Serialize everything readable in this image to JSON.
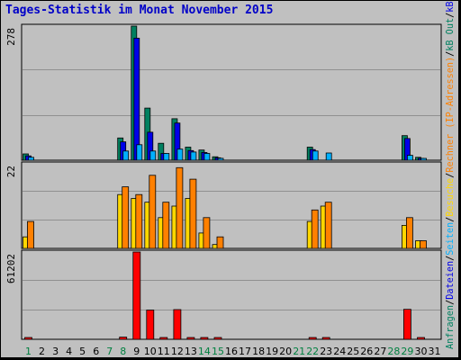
{
  "title": "Tages-Statistik im Monat November 2015",
  "colors": {
    "background": "#c0c0c0",
    "gridline": "#909090",
    "axis": "#000000",
    "title": "#0000c8",
    "day_weekday": "#000000",
    "day_weekend": "#008040"
  },
  "chart_data": [
    {
      "type": "bar",
      "panel": "top",
      "ymax_label": "278",
      "ylim": [
        0,
        278
      ],
      "grid": true,
      "categories": [
        "1",
        "2",
        "3",
        "4",
        "5",
        "6",
        "7",
        "8",
        "9",
        "10",
        "11",
        "12",
        "13",
        "14",
        "15",
        "16",
        "17",
        "18",
        "19",
        "20",
        "21",
        "22",
        "23",
        "24",
        "25",
        "26",
        "27",
        "28",
        "29",
        "30",
        "31"
      ],
      "weekend_days": [
        "1",
        "7",
        "8",
        "14",
        "15",
        "21",
        "22",
        "28",
        "29"
      ],
      "series": [
        {
          "name": "Anfragen",
          "color": "#008060",
          "values": [
            13,
            0,
            0,
            0,
            0,
            0,
            0,
            46,
            278,
            108,
            35,
            86,
            27,
            21,
            7,
            0,
            0,
            0,
            0,
            0,
            0,
            27,
            0,
            0,
            0,
            0,
            0,
            0,
            51,
            6,
            0
          ]
        },
        {
          "name": "Dateien",
          "color": "#0000e8",
          "values": [
            9,
            0,
            0,
            0,
            0,
            0,
            0,
            38,
            253,
            58,
            14,
            77,
            20,
            16,
            5,
            0,
            0,
            0,
            0,
            0,
            0,
            22,
            0,
            0,
            0,
            0,
            0,
            0,
            45,
            4,
            0
          ]
        },
        {
          "name": "Seiten",
          "color": "#00b0ff",
          "values": [
            6,
            0,
            0,
            0,
            0,
            0,
            0,
            19,
            32,
            19,
            14,
            23,
            17,
            14,
            4,
            0,
            0,
            0,
            0,
            0,
            0,
            19,
            15,
            0,
            0,
            0,
            0,
            0,
            10,
            3,
            0
          ]
        }
      ],
      "legend_position": "right"
    },
    {
      "type": "bar",
      "panel": "middle",
      "ymax_label": "22",
      "ylim": [
        0,
        22
      ],
      "grid": true,
      "categories": [
        "1",
        "2",
        "3",
        "4",
        "5",
        "6",
        "7",
        "8",
        "9",
        "10",
        "11",
        "12",
        "13",
        "14",
        "15",
        "16",
        "17",
        "18",
        "19",
        "20",
        "21",
        "22",
        "23",
        "24",
        "25",
        "26",
        "27",
        "28",
        "29",
        "30",
        "31"
      ],
      "series": [
        {
          "name": "Besuche",
          "color": "#ffd700",
          "values": [
            3,
            0,
            0,
            0,
            0,
            0,
            0,
            14,
            13,
            12,
            8,
            11,
            13,
            4,
            1,
            0,
            0,
            0,
            0,
            0,
            0,
            7,
            11,
            0,
            0,
            0,
            0,
            0,
            6,
            2,
            0
          ]
        },
        {
          "name": "Rechner (IP-Adressen)",
          "color": "#ff8000",
          "values": [
            7,
            0,
            0,
            0,
            0,
            0,
            0,
            16,
            14,
            19,
            12,
            21,
            18,
            8,
            3,
            0,
            0,
            0,
            0,
            0,
            0,
            10,
            12,
            0,
            0,
            0,
            0,
            0,
            8,
            2,
            0
          ]
        }
      ],
      "legend_position": "right"
    },
    {
      "type": "bar",
      "panel": "bottom",
      "ymax_label": "61202",
      "ylim": [
        0,
        61202
      ],
      "grid": true,
      "categories": [
        "1",
        "2",
        "3",
        "4",
        "5",
        "6",
        "7",
        "8",
        "9",
        "10",
        "11",
        "12",
        "13",
        "14",
        "15",
        "16",
        "17",
        "18",
        "19",
        "20",
        "21",
        "22",
        "23",
        "24",
        "25",
        "26",
        "27",
        "28",
        "29",
        "30",
        "31"
      ],
      "series": [
        {
          "name": "kB F",
          "color": "#ff0000",
          "values": [
            800,
            0,
            0,
            0,
            0,
            0,
            0,
            1500,
            61202,
            20500,
            600,
            20800,
            500,
            600,
            400,
            0,
            0,
            0,
            0,
            0,
            0,
            600,
            800,
            0,
            0,
            0,
            0,
            0,
            21000,
            300,
            0
          ]
        }
      ],
      "legend_position": "right"
    }
  ],
  "legend_right": [
    {
      "text": "Anfragen",
      "color": "#008060"
    },
    {
      "text": "/",
      "color": "#000000"
    },
    {
      "text": "Dateien",
      "color": "#0000e8"
    },
    {
      "text": "/",
      "color": "#000000"
    },
    {
      "text": "Seiten",
      "color": "#00b0ff"
    },
    {
      "text": "/",
      "color": "#000000"
    },
    {
      "text": "Besuche",
      "color": "#ffd700"
    },
    {
      "text": "/",
      "color": "#000000"
    },
    {
      "text": "Rechner (IP-Adressen)",
      "color": "#ff8000"
    },
    {
      "text": "/",
      "color": "#000000"
    },
    {
      "text": "kB Out",
      "color": "#008060"
    },
    {
      "text": "/",
      "color": "#000000"
    },
    {
      "text": "kB In",
      "color": "#0000e8"
    },
    {
      "text": "/",
      "color": "#000000"
    },
    {
      "text": "kB F",
      "color": "#ff0000"
    }
  ]
}
